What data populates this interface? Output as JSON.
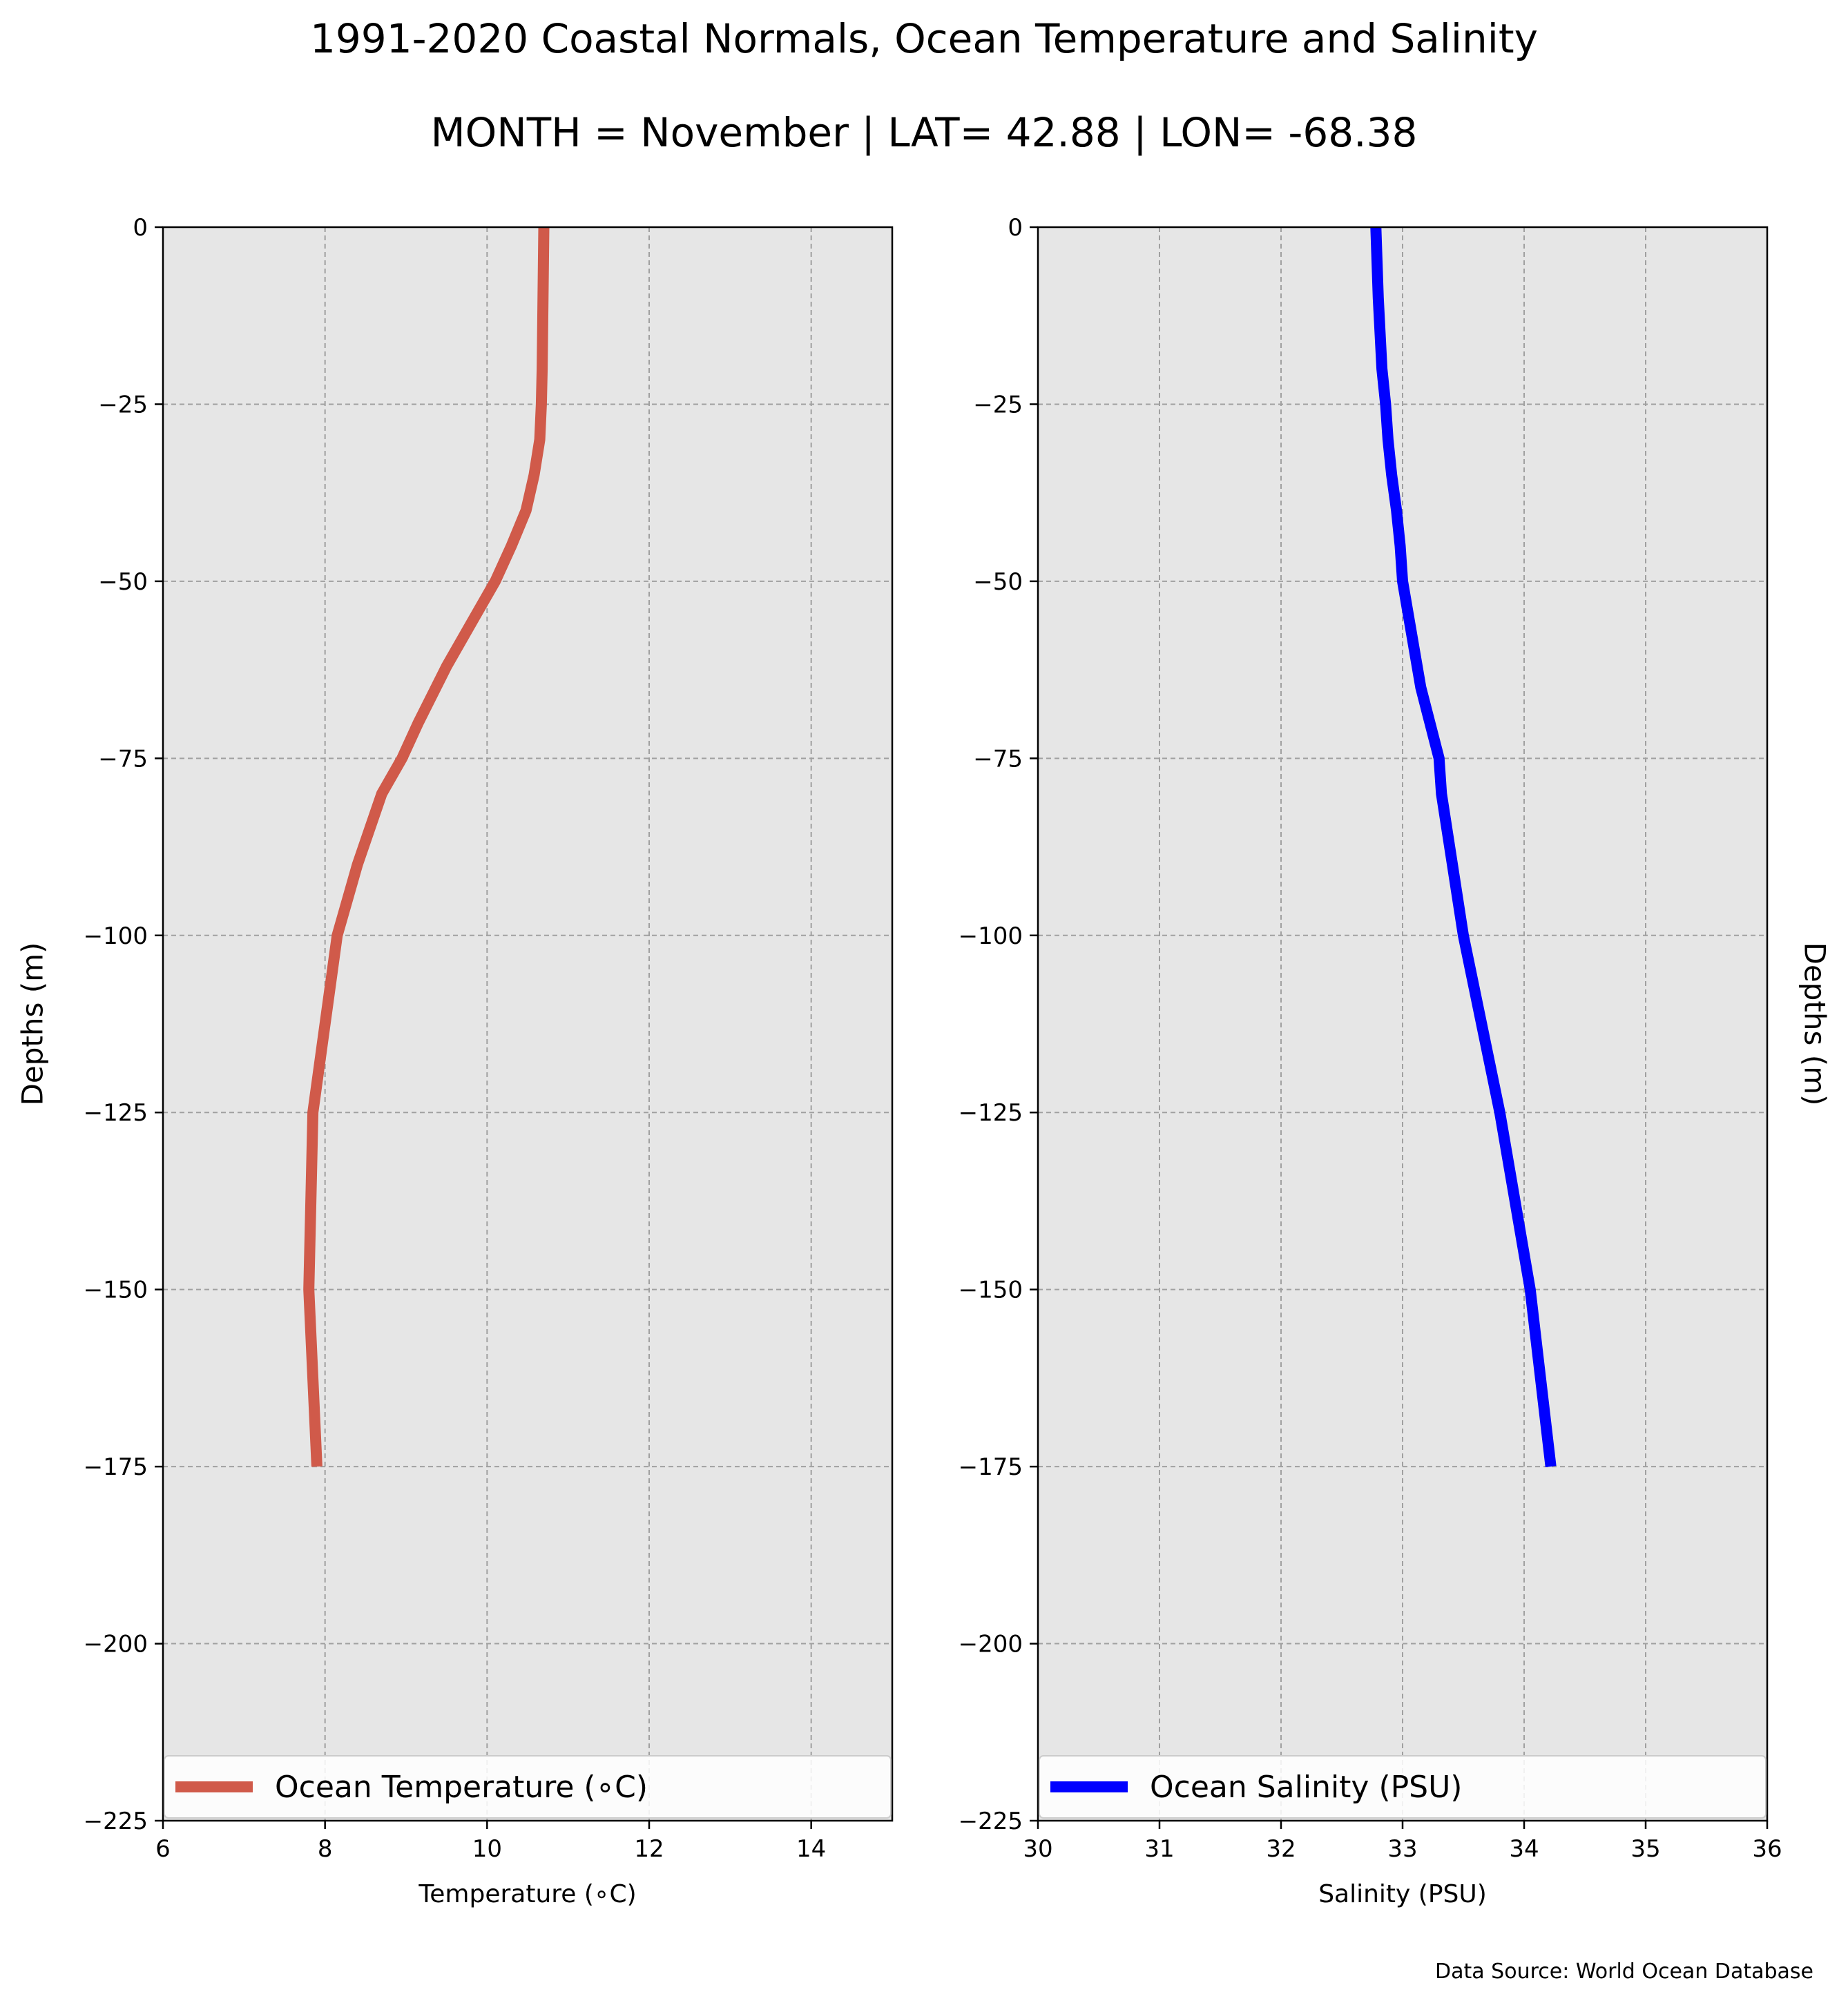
{
  "title": "1991-2020 Coastal Normals, Ocean Temperature and Salinity",
  "subtitle": "MONTH = November | LAT= 42.88 | LON= -68.38",
  "source": "Data Source: World Ocean Database",
  "chart_data": [
    {
      "type": "line",
      "xlabel": "Temperature (∘C)",
      "ylabel": "Depths (m)",
      "xlim": [
        6,
        15
      ],
      "ylim": [
        -225,
        0
      ],
      "xticks": [
        6,
        8,
        10,
        12,
        14
      ],
      "yticks": [
        0,
        -25,
        -50,
        -75,
        -100,
        -125,
        -150,
        -175,
        -200,
        -225
      ],
      "grid": true,
      "legend_position": "lower center",
      "series": [
        {
          "name": "Ocean Temperature (∘C)",
          "color": "#d05a4a",
          "x": [
            10.7,
            10.69,
            10.68,
            10.67,
            10.65,
            10.58,
            10.48,
            10.3,
            10.1,
            9.85,
            9.5,
            9.15,
            8.95,
            8.7,
            8.55,
            8.4,
            8.15,
            7.85,
            7.8,
            7.9
          ],
          "y": [
            0,
            -10,
            -20,
            -25,
            -30,
            -35,
            -40,
            -45,
            -50,
            -55,
            -62,
            -70,
            -75,
            -80,
            -85,
            -90,
            -100,
            -125,
            -150,
            -175
          ]
        }
      ]
    },
    {
      "type": "line",
      "xlabel": "Salinity (PSU)",
      "ylabel": "Depths (m)",
      "xlim": [
        30,
        36
      ],
      "ylim": [
        -225,
        0
      ],
      "xticks": [
        30,
        31,
        32,
        33,
        34,
        35,
        36
      ],
      "yticks": [
        0,
        -25,
        -50,
        -75,
        -100,
        -125,
        -150,
        -175,
        -200,
        -225
      ],
      "grid": true,
      "legend_position": "lower center",
      "series": [
        {
          "name": "Ocean Salinity (PSU)",
          "color": "#0000ff",
          "x": [
            32.78,
            32.8,
            32.83,
            32.86,
            32.88,
            32.91,
            32.95,
            32.98,
            33.0,
            33.05,
            33.15,
            33.3,
            33.32,
            33.5,
            33.8,
            34.05,
            34.22
          ],
          "y": [
            0,
            -10,
            -20,
            -25,
            -30,
            -35,
            -40,
            -45,
            -50,
            -55,
            -65,
            -75,
            -80,
            -100,
            -125,
            -150,
            -175
          ]
        }
      ]
    }
  ]
}
